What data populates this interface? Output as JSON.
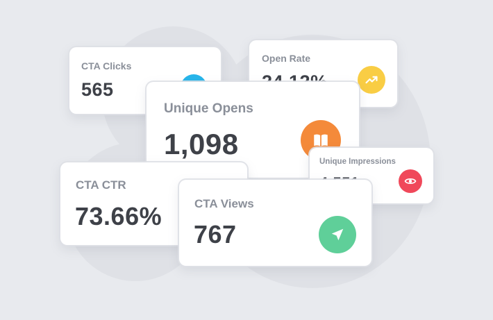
{
  "cards": {
    "cta_clicks": {
      "label": "CTA Clicks",
      "value": "565",
      "icon": "cursor-icon",
      "color": "#27b5ea"
    },
    "open_rate": {
      "label": "Open Rate",
      "value": "24.12%",
      "icon": "trending-up-icon",
      "color": "#f9cd44"
    },
    "unique_opens": {
      "label": "Unique Opens",
      "value": "1,098",
      "icon": "book-icon",
      "color": "#f48a3a"
    },
    "unique_impressions": {
      "label": "Unique Impressions",
      "value": "4,551",
      "icon": "eye-icon",
      "color": "#f0485a"
    },
    "cta_ctr": {
      "label": "CTA CTR",
      "value": "73.66%"
    },
    "cta_views": {
      "label": "CTA Views",
      "value": "767",
      "icon": "send-icon",
      "color": "#5fcf99"
    }
  }
}
